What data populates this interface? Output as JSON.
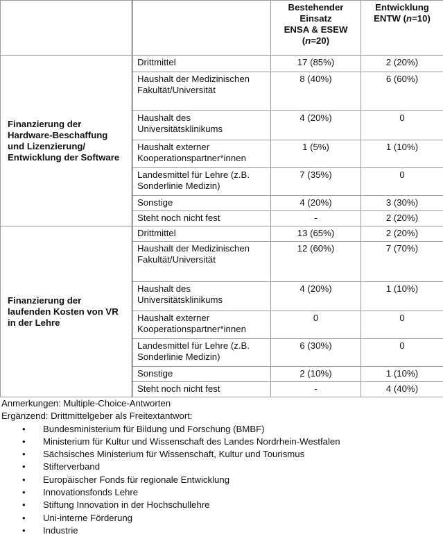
{
  "header": {
    "col3": [
      "Bestehender",
      "Einsatz",
      "ENSA & ESEW"
    ],
    "col3_n": "n",
    "col3_n_val": "=20",
    "col4": [
      "Entwicklung",
      "ENTW ("
    ],
    "col4_n": "n",
    "col4_n_val": "=10)"
  },
  "groups": [
    {
      "label": "Finanzierung der Hardware-Beschaffung und Lizenzierung/ Entwicklung der Software",
      "rows": [
        {
          "item": "Drittmittel",
          "a": "17 (85%)",
          "b": "2 (20%)"
        },
        {
          "item": "Haushalt der Medizinischen Fakultät/Universität",
          "a": "8 (40%)",
          "b": "6 (60%)"
        },
        {
          "item": "Haushalt des Universitätsklinikums",
          "a": "4 (20%)",
          "b": "0"
        },
        {
          "item": "Haushalt externer Kooperationspartner*innen",
          "a": "1 (5%)",
          "b": "1 (10%)"
        },
        {
          "item": "Landesmittel für Lehre (z.B. Sonderlinie Medizin)",
          "a": "7 (35%)",
          "b": "0"
        },
        {
          "item": "Sonstige",
          "a": "4 (20%)",
          "b": "3 (30%)"
        },
        {
          "item": "Steht noch nicht fest",
          "a": "-",
          "b": "2 (20%)"
        }
      ]
    },
    {
      "label": "Finanzierung der laufenden Kosten von VR in der Lehre",
      "rows": [
        {
          "item": "Drittmittel",
          "a": "13 (65%)",
          "b": "2 (20%)"
        },
        {
          "item": "Haushalt der Medizinischen Fakultät/Universität",
          "a": "12 (60%)",
          "b": "7 (70%)"
        },
        {
          "item": "Haushalt des Universitätsklinikums",
          "a": "4 (20%)",
          "b": "1 (10%)"
        },
        {
          "item": "Haushalt externer Kooperationspartner*innen",
          "a": "0",
          "b": "0"
        },
        {
          "item": "Landesmittel für Lehre (z.B. Sonderlinie Medizin)",
          "a": "6 (30%)",
          "b": "0"
        },
        {
          "item": "Sonstige",
          "a": "2 (10%)",
          "b": "1 (10%)"
        },
        {
          "item": "Steht noch nicht fest",
          "a": "-",
          "b": "4 (40%)"
        }
      ]
    }
  ],
  "notes": {
    "line1": "Anmerkungen: Multiple-Choice-Antworten",
    "line2": "Ergänzend: Drittmittelgeber als Freitextantwort:",
    "bullets": [
      "Bundesministerium für Bildung und Forschung (BMBF)",
      "Ministerium für Kultur und Wissenschaft des Landes Nordrhein-Westfalen",
      "Sächsisches Ministerium für Wissenschaft, Kultur und Tourismus",
      "Stifterverband",
      "Europäischer Fonds für regionale Entwicklung",
      "Innovationsfonds Lehre",
      "Stiftung Innovation in der Hochschullehre",
      "Uni-interne Förderung",
      "Industrie"
    ]
  }
}
